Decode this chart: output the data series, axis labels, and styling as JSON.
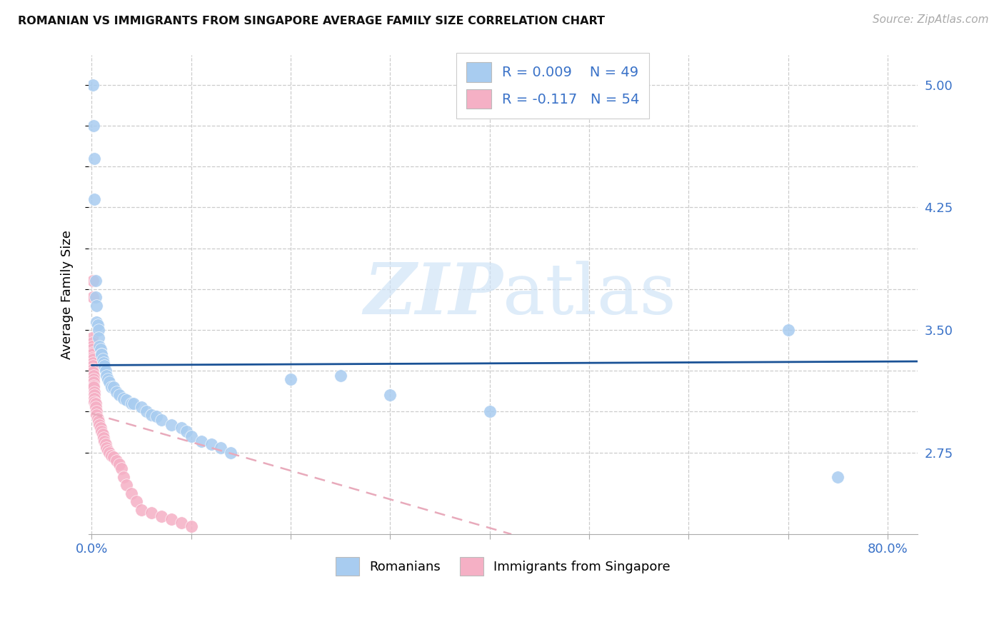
{
  "title": "ROMANIAN VS IMMIGRANTS FROM SINGAPORE AVERAGE FAMILY SIZE CORRELATION CHART",
  "source": "Source: ZipAtlas.com",
  "ylabel": "Average Family Size",
  "ymin": 2.25,
  "ymax": 5.18,
  "xmin": -0.003,
  "xmax": 0.83,
  "blue_R": "0.009",
  "blue_N": "49",
  "pink_R": "-0.117",
  "pink_N": "54",
  "blue_color": "#a8ccf0",
  "pink_color": "#f5b0c5",
  "trend_blue_color": "#1a5296",
  "trend_pink_color": "#e8aabb",
  "watermark_color": "#d0e4f7",
  "blue_scatter_x": [
    0.001,
    0.002,
    0.003,
    0.003,
    0.004,
    0.004,
    0.005,
    0.005,
    0.006,
    0.007,
    0.007,
    0.008,
    0.009,
    0.01,
    0.01,
    0.011,
    0.012,
    0.013,
    0.014,
    0.015,
    0.016,
    0.018,
    0.02,
    0.022,
    0.025,
    0.028,
    0.032,
    0.035,
    0.04,
    0.042,
    0.05,
    0.055,
    0.06,
    0.065,
    0.07,
    0.08,
    0.09,
    0.095,
    0.1,
    0.11,
    0.12,
    0.13,
    0.14,
    0.2,
    0.25,
    0.3,
    0.4,
    0.7,
    0.75
  ],
  "blue_scatter_y": [
    5.0,
    4.75,
    4.55,
    4.3,
    3.8,
    3.7,
    3.65,
    3.55,
    3.53,
    3.5,
    3.45,
    3.4,
    3.38,
    3.35,
    3.35,
    3.32,
    3.3,
    3.28,
    3.25,
    3.22,
    3.2,
    3.18,
    3.15,
    3.15,
    3.12,
    3.1,
    3.08,
    3.07,
    3.05,
    3.05,
    3.03,
    3.0,
    2.98,
    2.97,
    2.95,
    2.92,
    2.9,
    2.88,
    2.85,
    2.82,
    2.8,
    2.78,
    2.75,
    3.2,
    3.22,
    3.1,
    3.0,
    3.5,
    2.6
  ],
  "pink_scatter_x": [
    0.0002,
    0.0003,
    0.0004,
    0.0005,
    0.0006,
    0.0007,
    0.0008,
    0.001,
    0.001,
    0.0012,
    0.0014,
    0.0015,
    0.0016,
    0.0018,
    0.002,
    0.002,
    0.0022,
    0.0025,
    0.003,
    0.003,
    0.003,
    0.004,
    0.004,
    0.005,
    0.005,
    0.006,
    0.007,
    0.008,
    0.009,
    0.01,
    0.011,
    0.012,
    0.013,
    0.014,
    0.015,
    0.016,
    0.018,
    0.02,
    0.022,
    0.025,
    0.028,
    0.03,
    0.032,
    0.035,
    0.04,
    0.045,
    0.05,
    0.06,
    0.07,
    0.08,
    0.09,
    0.1,
    0.001,
    0.001
  ],
  "pink_scatter_y": [
    3.45,
    3.42,
    3.4,
    3.38,
    3.36,
    3.35,
    3.33,
    3.32,
    3.3,
    3.28,
    3.26,
    3.24,
    3.22,
    3.2,
    3.18,
    3.16,
    3.15,
    3.12,
    3.1,
    3.08,
    3.06,
    3.05,
    3.03,
    3.0,
    2.98,
    2.96,
    2.94,
    2.92,
    2.9,
    2.88,
    2.86,
    2.84,
    2.82,
    2.8,
    2.78,
    2.76,
    2.75,
    2.73,
    2.72,
    2.7,
    2.68,
    2.65,
    2.6,
    2.55,
    2.5,
    2.45,
    2.4,
    2.38,
    2.36,
    2.34,
    2.32,
    2.3,
    3.8,
    3.7
  ],
  "xtick_positions": [
    0.0,
    0.1,
    0.2,
    0.3,
    0.4,
    0.5,
    0.6,
    0.7,
    0.8
  ],
  "ytick_major": [
    2.75,
    3.5,
    4.25,
    5.0
  ],
  "ytick_minor": [
    2.75,
    3.0,
    3.25,
    3.5,
    3.75,
    4.0,
    4.25,
    4.5,
    4.75,
    5.0
  ]
}
